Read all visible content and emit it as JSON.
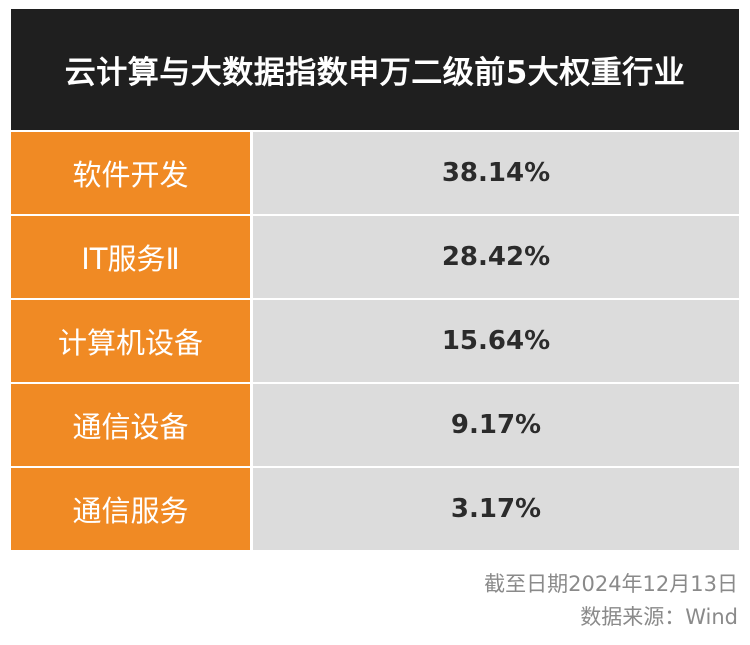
{
  "header": {
    "title": "云计算与大数据指数申万二级前5大权重行业"
  },
  "colors": {
    "title_bg": "#1f1f1f",
    "category_bg": "#f08a24",
    "value_bg": "#dcdcdc",
    "footer_text": "#8a8a8a"
  },
  "chart_data": {
    "type": "table",
    "title": "云计算与大数据指数申万二级前5大权重行业",
    "categories": [
      "软件开发",
      "IT服务Ⅱ",
      "计算机设备",
      "通信设备",
      "通信服务"
    ],
    "values": [
      38.14,
      28.42,
      15.64,
      9.17,
      3.17
    ],
    "value_labels": [
      "38.14%",
      "28.42%",
      "15.64%",
      "9.17%",
      "3.17%"
    ],
    "unit": "%"
  },
  "footer": {
    "date": "截至日期2024年12月13日",
    "source": "数据来源：Wind"
  }
}
